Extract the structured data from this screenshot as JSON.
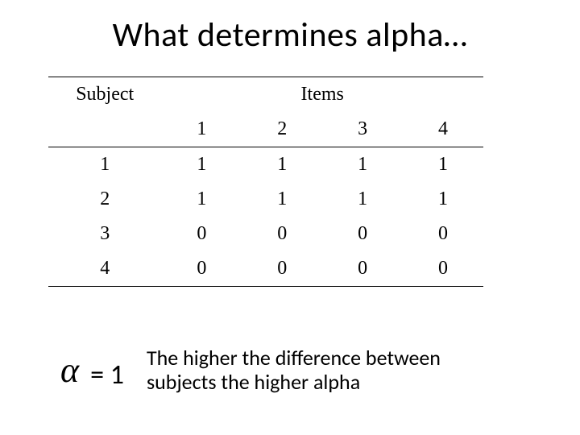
{
  "title": "What determines alpha…",
  "table": {
    "header_subject": "Subject",
    "header_items": "Items",
    "item_cols": [
      "1",
      "2",
      "3",
      "4"
    ],
    "rows": [
      {
        "subject": "1",
        "cells": [
          "1",
          "1",
          "1",
          "1"
        ]
      },
      {
        "subject": "2",
        "cells": [
          "1",
          "1",
          "1",
          "1"
        ]
      },
      {
        "subject": "3",
        "cells": [
          "0",
          "0",
          "0",
          "0"
        ]
      },
      {
        "subject": "4",
        "cells": [
          "0",
          "0",
          "0",
          "0"
        ]
      }
    ],
    "font_family": "Times New Roman",
    "header_fontsize": 24,
    "cell_fontsize": 24,
    "border_color": "#000000"
  },
  "alpha": {
    "symbol": "α",
    "equals": "= 1",
    "symbol_fontsize": 44,
    "eq_fontsize": 34
  },
  "caption": "The higher the difference between subjects the higher alpha",
  "styling": {
    "background_color": "#ffffff",
    "title_fontsize": 42,
    "title_color": "#000000",
    "caption_fontsize": 26
  }
}
